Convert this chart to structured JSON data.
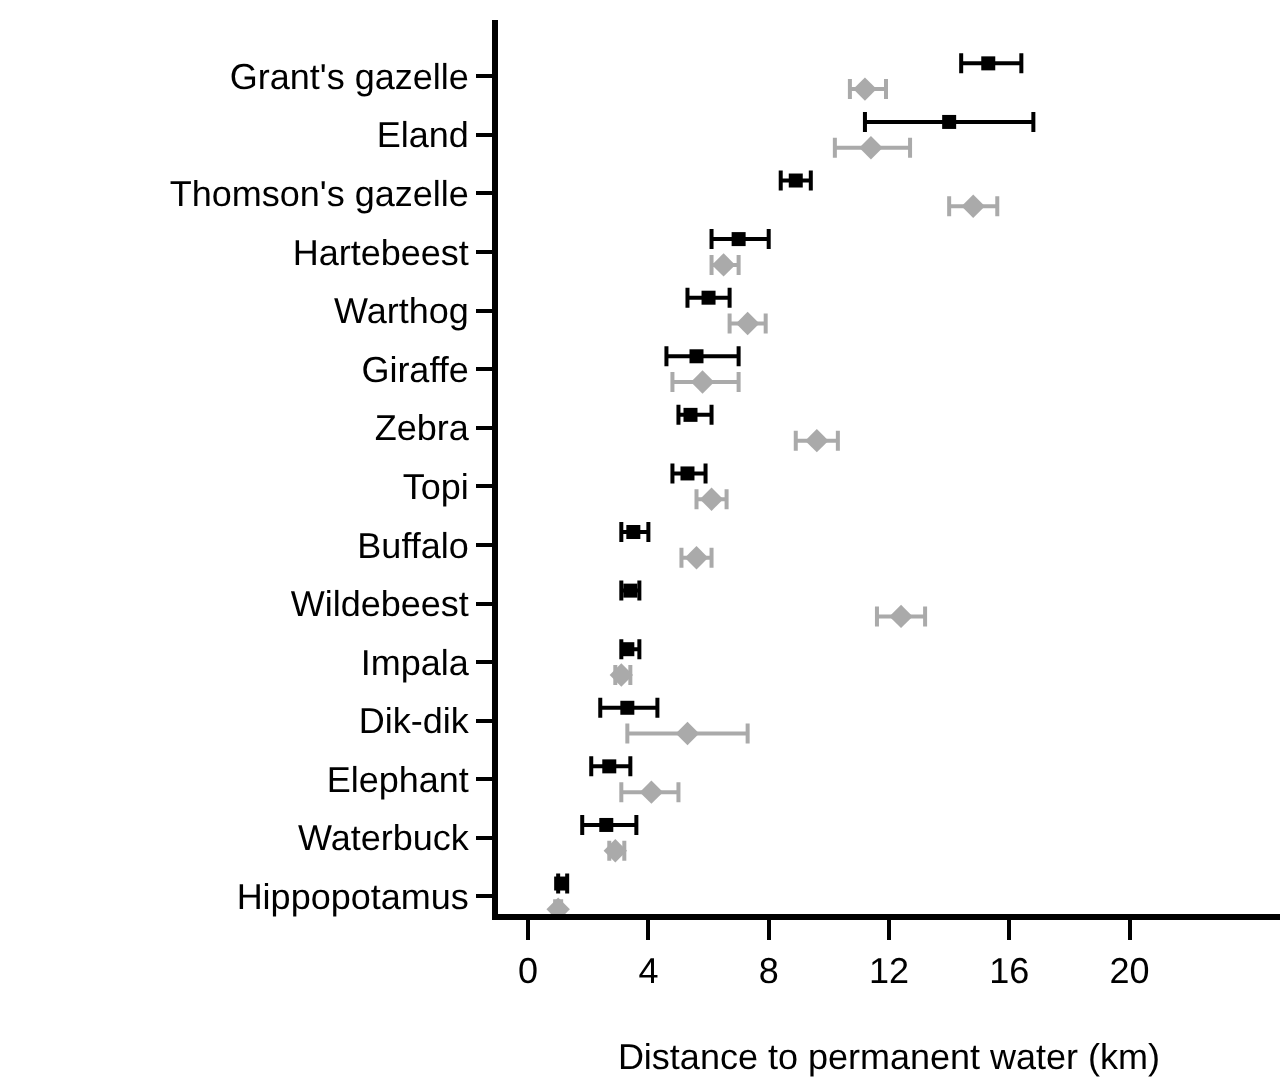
{
  "chart_data": {
    "type": "scatter",
    "orientation": "horizontal",
    "xlabel": "Distance to permanent water (km)",
    "categories": [
      "Grant's gazelle",
      "Eland",
      "Thomson's gazelle",
      "Hartebeest",
      "Warthog",
      "Giraffe",
      "Zebra",
      "Topi",
      "Buffalo",
      "Wildebeest",
      "Impala",
      "Dik-dik",
      "Elephant",
      "Waterbuck",
      "Hippopotamus"
    ],
    "series": [
      {
        "color": "#000000",
        "marker": "square",
        "values": [
          15.3,
          14.0,
          8.9,
          7.0,
          6.0,
          5.6,
          5.4,
          5.3,
          3.5,
          3.4,
          3.3,
          3.3,
          2.7,
          2.6,
          1.1
        ],
        "errors": [
          [
            14.4,
            16.4
          ],
          [
            11.2,
            16.8
          ],
          [
            8.4,
            9.4
          ],
          [
            6.1,
            8.0
          ],
          [
            5.3,
            6.7
          ],
          [
            4.6,
            7.0
          ],
          [
            5.0,
            6.1
          ],
          [
            4.8,
            5.9
          ],
          [
            3.1,
            4.0
          ],
          [
            3.1,
            3.7
          ],
          [
            3.1,
            3.7
          ],
          [
            2.4,
            4.3
          ],
          [
            2.1,
            3.4
          ],
          [
            1.8,
            3.6
          ],
          [
            1.0,
            1.3
          ]
        ]
      },
      {
        "color": "#aaaaaa",
        "marker": "diamond",
        "values": [
          11.2,
          11.4,
          14.8,
          6.5,
          7.3,
          5.8,
          9.6,
          6.1,
          5.6,
          12.4,
          3.1,
          5.3,
          4.1,
          2.9,
          1.0
        ],
        "errors": [
          [
            10.7,
            11.9
          ],
          [
            10.2,
            12.7
          ],
          [
            14.0,
            15.6
          ],
          [
            6.1,
            7.0
          ],
          [
            6.7,
            7.9
          ],
          [
            4.8,
            7.0
          ],
          [
            8.9,
            10.3
          ],
          [
            5.6,
            6.6
          ],
          [
            5.1,
            6.1
          ],
          [
            11.6,
            13.2
          ],
          [
            2.9,
            3.4
          ],
          [
            3.3,
            7.3
          ],
          [
            3.1,
            5.0
          ],
          [
            2.7,
            3.2
          ],
          [
            0.9,
            1.1
          ]
        ]
      }
    ],
    "xlim": [
      -1,
      25
    ],
    "xticks": [
      0,
      4,
      8,
      12,
      16,
      20
    ],
    "grid": false
  }
}
